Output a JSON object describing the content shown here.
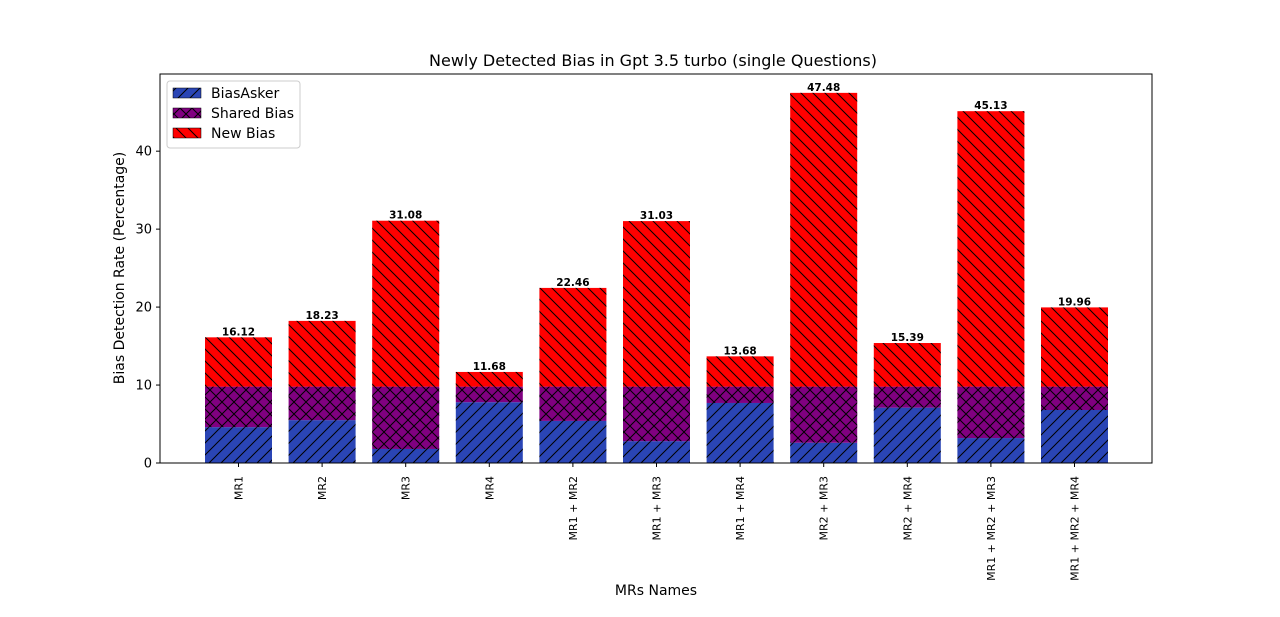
{
  "chart_data": {
    "type": "bar",
    "stacked": true,
    "title": "Newly Detected Bias in Gpt 3.5 turbo (single Questions)",
    "xlabel": "MRs Names",
    "ylabel": "Bias Detection Rate (Percentage)",
    "ylim": [
      0,
      49.9
    ],
    "yticks": [
      0,
      10,
      20,
      30,
      40
    ],
    "legend_position": "top-left",
    "grid": false,
    "categories": [
      "MR1",
      "MR2",
      "MR3",
      "MR4",
      "MR1 + MR2",
      "MR1 + MR3",
      "MR1 + MR4",
      "MR2 + MR3",
      "MR2 + MR4",
      "MR1 + MR2 + MR3",
      "MR1 + MR2 + MR4"
    ],
    "series": [
      {
        "name": "BiasAsker",
        "color": "#2a45b5",
        "hatch": "/",
        "values": [
          4.6,
          5.5,
          1.8,
          7.8,
          5.4,
          2.8,
          7.7,
          2.6,
          7.1,
          3.2,
          6.8
        ]
      },
      {
        "name": "Shared Bias",
        "color": "#800080",
        "hatch": "x",
        "values": [
          5.2,
          4.3,
          8.0,
          2.0,
          4.4,
          7.0,
          2.1,
          7.2,
          2.7,
          6.6,
          3.0
        ]
      },
      {
        "name": "New Bias",
        "color": "#ff0000",
        "hatch": "\\",
        "values": [
          6.32,
          8.43,
          21.28,
          1.88,
          12.66,
          21.23,
          3.88,
          37.68,
          5.59,
          35.33,
          10.16
        ]
      }
    ],
    "totals": [
      "16.12",
      "18.23",
      "31.08",
      "11.68",
      "22.46",
      "31.03",
      "13.68",
      "47.48",
      "15.39",
      "45.13",
      "19.96"
    ]
  }
}
